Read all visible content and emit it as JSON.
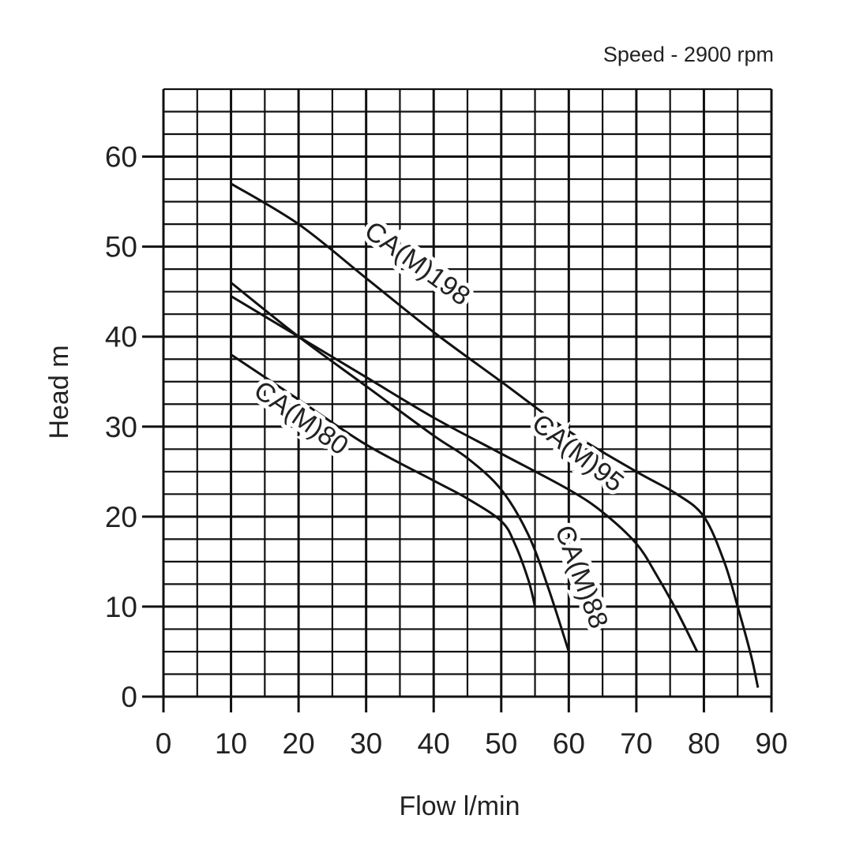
{
  "chart_data": {
    "type": "line",
    "title": "Speed - 2900 rpm",
    "xlabel": "Flow l/min",
    "ylabel": "Head m",
    "xlim": [
      0,
      90
    ],
    "ylim": [
      0,
      67.5
    ],
    "xticks": [
      0,
      10,
      20,
      30,
      40,
      50,
      60,
      70,
      80,
      90
    ],
    "yticks": [
      0,
      10,
      20,
      30,
      40,
      50,
      60
    ],
    "grid": true,
    "x_minor_step": 5,
    "y_minor_step": 2.5,
    "series": [
      {
        "name": "CA(M)198",
        "x": [
          10,
          20,
          30,
          40,
          50,
          60,
          70,
          76,
          80,
          83,
          85,
          87,
          88
        ],
        "y": [
          57,
          52.5,
          46.5,
          40.5,
          35,
          29.5,
          25,
          22.5,
          20,
          15,
          10,
          4.5,
          1
        ]
      },
      {
        "name": "CA(M)95",
        "x": [
          10,
          20,
          30,
          40,
          50,
          60,
          65,
          70,
          73,
          76,
          79
        ],
        "y": [
          44.5,
          40,
          35.5,
          31,
          27,
          23,
          20.5,
          17,
          13.5,
          9.5,
          5
        ]
      },
      {
        "name": "CA(M)88",
        "x": [
          10,
          20,
          30,
          40,
          45,
          50,
          54,
          57,
          60
        ],
        "y": [
          46,
          40,
          34.5,
          29,
          26.5,
          23,
          18,
          12,
          5
        ]
      },
      {
        "name": "CA(M)80",
        "x": [
          10,
          20,
          30,
          40,
          45,
          50,
          52,
          54,
          55
        ],
        "y": [
          38,
          33,
          28,
          24,
          22,
          19.5,
          17,
          13,
          10
        ]
      }
    ]
  }
}
